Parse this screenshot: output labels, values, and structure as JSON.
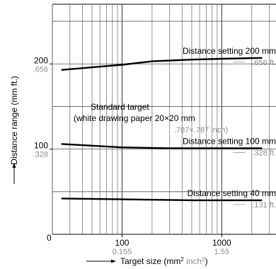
{
  "chart_data": {
    "type": "line",
    "ylabel": "Distance range (mm ft.)",
    "xlabel_main": "Target size (mm",
    "xlabel_inch": "inch",
    "xlabel_exp": "2",
    "xlabel_close": ")",
    "xlabel_sep": " ",
    "x_scale": "log",
    "xlim": [
      20,
      3500
    ],
    "ylim": [
      0,
      270
    ],
    "origin_label": "0",
    "x_ticks": [
      {
        "value": 100,
        "label_mm": "100",
        "label_inch": "0.155"
      },
      {
        "value": 1000,
        "label_mm": "1000",
        "label_inch": "1.55"
      }
    ],
    "y_ticks": [
      {
        "value": 100,
        "label_mm": "100",
        "label_ft": ".328"
      },
      {
        "value": 200,
        "label_mm": "200",
        "label_ft": ".656"
      }
    ],
    "series": [
      {
        "name": "Distance setting 200 mm",
        "ft_label": ".656 ft.",
        "points": [
          [
            25,
            193
          ],
          [
            50,
            196
          ],
          [
            100,
            199
          ],
          [
            200,
            203
          ],
          [
            500,
            205
          ],
          [
            1000,
            206
          ],
          [
            2500,
            207
          ]
        ]
      },
      {
        "name": "Distance setting 100 mm",
        "ft_label": ".328 ft.",
        "points": [
          [
            25,
            106
          ],
          [
            50,
            104
          ],
          [
            100,
            102
          ],
          [
            300,
            101
          ],
          [
            1000,
            101
          ],
          [
            2500,
            101
          ]
        ]
      },
      {
        "name": "Distance setting 40 mm",
        "ft_label": ".131 ft.",
        "points": [
          [
            25,
            42
          ],
          [
            100,
            41
          ],
          [
            500,
            40
          ],
          [
            1000,
            40
          ],
          [
            2500,
            40
          ]
        ]
      }
    ],
    "annotation": {
      "line1": "Standard target",
      "line2": "(white drawing paper 20×20 mm",
      "line3": ".787×.787 inch)"
    },
    "grid": true,
    "legend": "none"
  }
}
